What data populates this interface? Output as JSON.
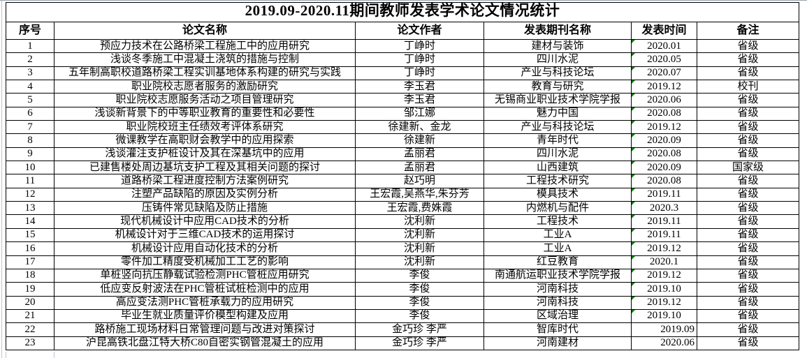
{
  "title": "2019.09-2020.11期间教师发表学术论文情况统计",
  "columns": [
    "序号",
    "论文名称",
    "论文作者",
    "发表期刊名称",
    "发表时间",
    "备注"
  ],
  "flag_color": "#008000",
  "rows": [
    {
      "no": "1",
      "paper": "预应力技术在公路桥梁工程施工中的应用研究",
      "authors": "丁峥时",
      "journal": "建材与装饰",
      "date": "2020.01",
      "date_flag": true,
      "date_align": "center",
      "note": "省级"
    },
    {
      "no": "2",
      "paper": "浅谈冬季施工中混凝土浇筑的措施与控制",
      "authors": "丁峥时",
      "journal": "四川水泥",
      "date": "2020.05",
      "date_flag": true,
      "date_align": "center",
      "note": "省级"
    },
    {
      "no": "3",
      "paper": "五年制高职校道路桥梁工程实训基地体系构建的研究与实践",
      "authors": "丁峥时",
      "journal": "产业与科技论坛",
      "date": "2020.07",
      "date_flag": true,
      "date_align": "center",
      "note": "省级"
    },
    {
      "no": "4",
      "paper": "职业院校志愿者服务的激励研究",
      "authors": "李玉君",
      "journal": "教育与研究",
      "date": "2019.12",
      "date_flag": true,
      "date_align": "center",
      "note": "校刊"
    },
    {
      "no": "5",
      "paper": "职业院校志愿服务活动之项目管理研究",
      "authors": "李玉君",
      "journal": "无锡商业职业技术学院学报",
      "date": "2020.06",
      "date_flag": true,
      "date_align": "center",
      "note": "省级"
    },
    {
      "no": "6",
      "paper": "浅谈新背景下的中等职业教育的重要性和必要性",
      "authors": "邹江娜",
      "journal": "魅力中国",
      "date": "2020.08",
      "date_flag": true,
      "date_align": "center",
      "note": "省级"
    },
    {
      "no": "7",
      "paper": "职业院校班主任绩效考评体系研究",
      "authors": "徐建新、金龙",
      "journal": "产业与科技论坛",
      "date": "2019.12",
      "date_flag": true,
      "date_align": "center",
      "note": "省级"
    },
    {
      "no": "8",
      "paper": "微课教学在高职财会教学中的应用探索",
      "authors": "徐建新",
      "journal": "青年时代",
      "date": "2020.09",
      "date_flag": true,
      "date_align": "center",
      "note": "省级"
    },
    {
      "no": "9",
      "paper": "浅谈灌注支护桩设计及其在深基坑中的应用",
      "authors": "孟丽君",
      "journal": "四川水泥",
      "date": "2020.08",
      "date_flag": true,
      "date_align": "center",
      "note": "省级"
    },
    {
      "no": "10",
      "paper": "已建售楼处周边基坑支护工程及其相关问题的探讨",
      "authors": "孟丽君",
      "journal": "山西建筑",
      "date": "2020.09",
      "date_flag": true,
      "date_align": "center",
      "note": "国家级"
    },
    {
      "no": "11",
      "paper": "道路桥梁工程进度控制方法案例研究",
      "authors": "赵巧明",
      "journal": "工程技术研究",
      "date": "2020.08",
      "date_flag": true,
      "date_align": "center",
      "note": "省级"
    },
    {
      "no": "12",
      "paper": "注塑产品缺陷的原因及实例分析",
      "authors": "王宏霞,吴燕华,朱芬芳",
      "journal": "模具技术",
      "date": "2019.11",
      "date_flag": true,
      "date_align": "center",
      "note": "省级"
    },
    {
      "no": "13",
      "paper": "压铸件常见缺陷及防止措施",
      "authors": "王宏霞,费姝霞",
      "journal": "内燃机与配件",
      "date": "2020.3",
      "date_flag": true,
      "date_align": "center",
      "note": "省级"
    },
    {
      "no": "14",
      "paper": "现代机械设计中应用CAD技术的分析",
      "authors": "沈利新",
      "journal": "工程技术",
      "date": "2019.11",
      "date_flag": true,
      "date_align": "center",
      "note": "省级"
    },
    {
      "no": "15",
      "paper": "机械设计对于三维CAD技术的运用探讨",
      "authors": "沈利新",
      "journal": "工业A",
      "date": "2019.11",
      "date_flag": true,
      "date_align": "center",
      "note": "省级"
    },
    {
      "no": "16",
      "paper": "机械设计应用自动化技术的分析",
      "authors": "沈利新",
      "journal": "工业A",
      "date": "2019.12",
      "date_flag": true,
      "date_align": "center",
      "note": "省级"
    },
    {
      "no": "17",
      "paper": "零件加工精度受机械加工工艺的影响",
      "authors": "沈利新",
      "journal": "红豆教育",
      "date": "2020.1",
      "date_flag": true,
      "date_align": "center",
      "note": "省级"
    },
    {
      "no": "18",
      "paper": "单桩竖向抗压静载试验检测PHC管桩应用研究",
      "authors": "李俊",
      "journal": "南通航运职业技术学院学报",
      "date": "2019.12",
      "date_flag": true,
      "date_align": "center",
      "note": "省级"
    },
    {
      "no": "19",
      "paper": "低应变反射波法在PHC管桩试桩检测中的应用",
      "authors": "李俊",
      "journal": "河南科技",
      "date": "2019.10",
      "date_flag": true,
      "date_align": "center",
      "note": "省级"
    },
    {
      "no": "20",
      "paper": "高应变法测PHC管桩承载力的应用研究",
      "authors": "李俊",
      "journal": "河南科技",
      "date": "2019.12",
      "date_flag": true,
      "date_align": "center",
      "note": "省级"
    },
    {
      "no": "21",
      "paper": "毕业生就业质量评价模型构建及应用",
      "authors": "李俊",
      "journal": "区域治理",
      "date": "2019.10",
      "date_flag": true,
      "date_align": "center",
      "note": "省级"
    },
    {
      "no": "22",
      "paper": "路桥施工现场材料日常管理问题与改进对策探讨",
      "authors": "金巧珍 李严",
      "journal": "智库时代",
      "date": "2019.09",
      "date_flag": false,
      "date_align": "right",
      "note": "省级"
    },
    {
      "no": "23",
      "paper": "沪昆高铁北盘江特大桥C80自密实钢管混凝土的应用",
      "authors": "金巧珍 李严",
      "journal": "河南建材",
      "date": "2020.06",
      "date_flag": false,
      "date_align": "right",
      "note": "省级"
    }
  ]
}
